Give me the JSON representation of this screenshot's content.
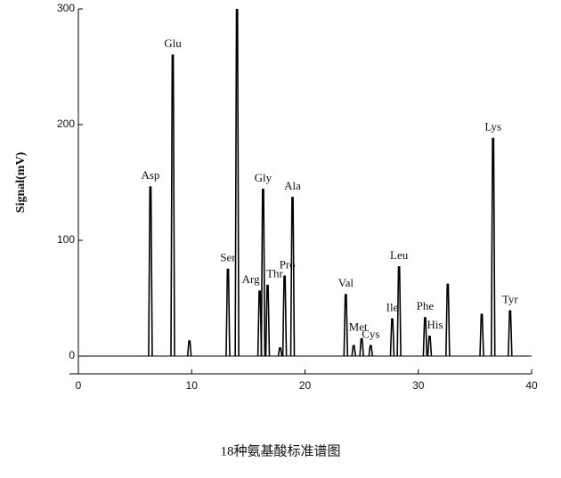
{
  "chart_data": {
    "type": "chromatogram",
    "y_label": "Signal(mV)",
    "caption": "18种氨基酸标准谱图",
    "color": "#000000",
    "xlim": [
      0,
      40
    ],
    "ylim": [
      0,
      300
    ],
    "xticks": [
      0,
      10,
      20,
      30,
      40
    ],
    "yticks": [
      0,
      100,
      200,
      300
    ],
    "peaks": [
      {
        "label": "Asp",
        "x": 6.36,
        "y": 146
      },
      {
        "x": 9.8,
        "y": 13
      },
      {
        "label": "Glu",
        "x": 8.33,
        "y": 260
      },
      {
        "label": "Ser",
        "x": 13.2,
        "y": 75
      },
      {
        "x": 14.0,
        "y": 300
      },
      {
        "label": "Arg",
        "x": 16.0,
        "y": 56
      },
      {
        "label": "Gly",
        "x": 16.3,
        "y": 144
      },
      {
        "label": "Thr",
        "x": 16.7,
        "y": 61
      },
      {
        "x": 17.8,
        "y": 7
      },
      {
        "label": "Pro",
        "x": 18.2,
        "y": 69
      },
      {
        "label": "Ala",
        "x": 18.9,
        "y": 137
      },
      {
        "label": "Val",
        "x": 23.6,
        "y": 53
      },
      {
        "x": 24.3,
        "y": 9
      },
      {
        "label": "Met",
        "x": 25.0,
        "y": 15
      },
      {
        "label": "Cys",
        "x": 25.8,
        "y": 9
      },
      {
        "label": "Ile",
        "x": 27.7,
        "y": 32
      },
      {
        "label": "Leu",
        "x": 28.3,
        "y": 77
      },
      {
        "label": "Phe",
        "x": 30.6,
        "y": 33
      },
      {
        "label": "His",
        "x": 31.0,
        "y": 17
      },
      {
        "x": 32.6,
        "y": 62
      },
      {
        "x": 35.6,
        "y": 36
      },
      {
        "label": "Lys",
        "x": 36.6,
        "y": 188
      },
      {
        "label": "Tyr",
        "x": 38.1,
        "y": 39
      }
    ]
  }
}
